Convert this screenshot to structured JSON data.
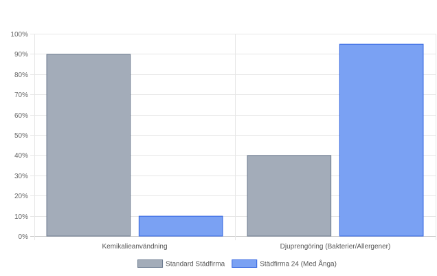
{
  "chart_data": {
    "type": "bar",
    "categories": [
      "Kemikalieanvändning",
      "Djuprengöring (Bakterier/Allergener)"
    ],
    "series": [
      {
        "name": "Standard Städfirma",
        "values": [
          90,
          40
        ],
        "fill": "#a3acb9",
        "stroke": "#6b7a8f"
      },
      {
        "name": "Städfirma 24 (Med Ånga)",
        "values": [
          10,
          95
        ],
        "fill": "#7aa1f3",
        "stroke": "#2f62e0"
      }
    ],
    "y_ticks": [
      "0%",
      "10%",
      "20%",
      "30%",
      "40%",
      "50%",
      "60%",
      "70%",
      "80%",
      "90%",
      "100%"
    ],
    "ylim": [
      0,
      100
    ],
    "grid": true,
    "legend_position": "bottom",
    "title": "",
    "xlabel": "",
    "ylabel": ""
  }
}
